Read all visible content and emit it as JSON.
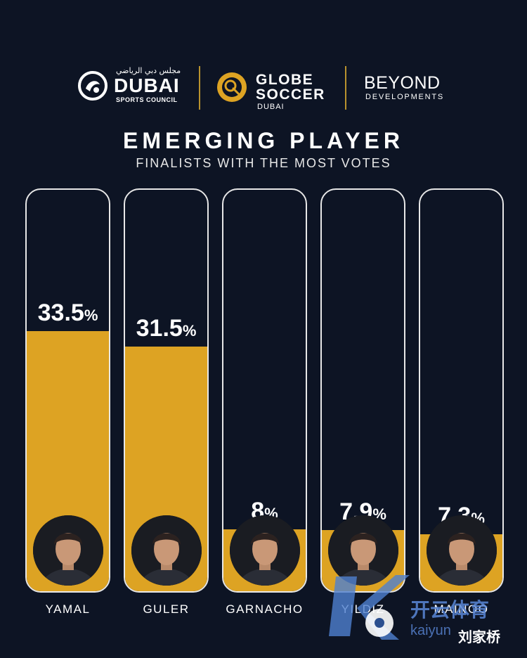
{
  "logos": {
    "dsc": {
      "arabic": "مجلس دبي الرياضي",
      "name": "DUBAI",
      "sub": "SPORTS COUNCIL",
      "mark_icon": "dubai-sports-council-emblem-icon"
    },
    "gs": {
      "line1": "GLOBE",
      "line2": "SOCCER",
      "sub": "DUBAI",
      "mark_icon": "globe-soccer-emblem-icon"
    },
    "bd": {
      "name": "BEYOND",
      "sub": "DEVELOPMENTS"
    }
  },
  "colors": {
    "background": "#0d1424",
    "bar": "#dda323",
    "accent": "#b8922e"
  },
  "chart_data": {
    "type": "bar",
    "title": "EMERGING PLAYER",
    "subtitle": "FINALISTS WITH THE MOST VOTES",
    "xlabel": "",
    "ylabel": "",
    "ylim": [
      0,
      52
    ],
    "grid": false,
    "legend": "none",
    "unit": "%",
    "categories": [
      "YAMAL",
      "GULER",
      "GARNACHO",
      "YILDIZ",
      "MAINOO"
    ],
    "values": [
      33.5,
      31.5,
      8,
      7.9,
      7.3
    ],
    "value_labels": [
      "33.5",
      "31.5",
      "8",
      "7.9",
      "7.3"
    ]
  },
  "watermark": {
    "cn": "开云体育",
    "url": "kaiyun",
    "user": "刘家桥"
  }
}
